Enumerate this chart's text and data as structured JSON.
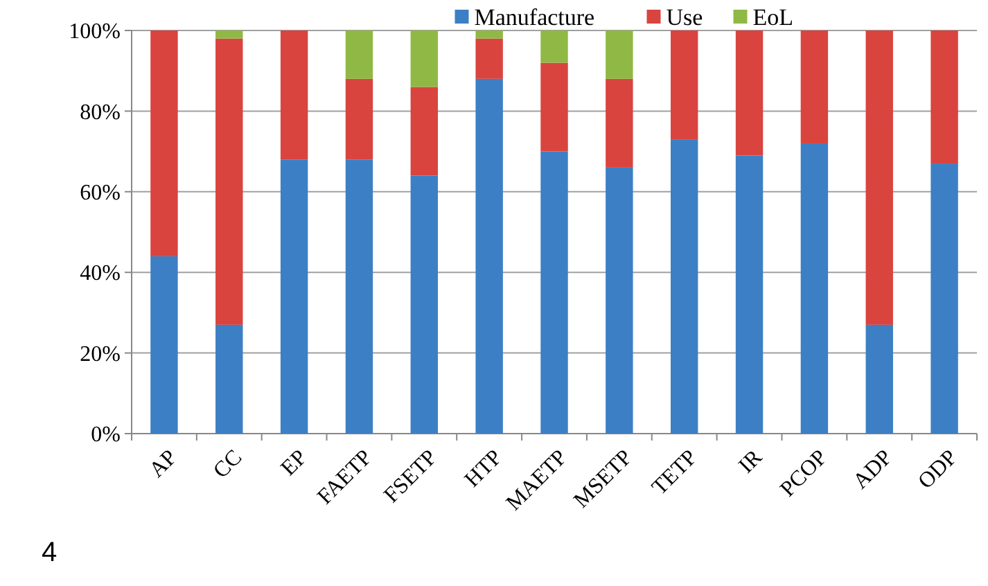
{
  "chart_data": {
    "type": "bar",
    "stacked": true,
    "categories": [
      "AP",
      "CC",
      "EP",
      "FAETP",
      "FSETP",
      "HTP",
      "MAETP",
      "MSETP",
      "TETP",
      "IR",
      "PCOP",
      "ADP",
      "ODP"
    ],
    "series": [
      {
        "name": "Manufacture",
        "color": "#3d7fc4",
        "values": [
          44,
          27,
          68,
          68,
          64,
          88,
          70,
          66,
          73,
          69,
          72,
          27,
          67
        ]
      },
      {
        "name": "Use",
        "color": "#d9443f",
        "values": [
          56,
          71,
          32,
          20,
          22,
          10,
          22,
          22,
          27,
          31,
          28,
          73,
          33
        ]
      },
      {
        "name": "EoL",
        "color": "#8fb944",
        "values": [
          0,
          2,
          0,
          12,
          14,
          2,
          8,
          12,
          0,
          0,
          0,
          0,
          0
        ]
      }
    ],
    "ylim": [
      0,
      100
    ],
    "yticks": [
      {
        "value": 0,
        "label": "0%"
      },
      {
        "value": 20,
        "label": "20%"
      },
      {
        "value": 40,
        "label": "40%"
      },
      {
        "value": 60,
        "label": "60%"
      },
      {
        "value": 80,
        "label": "80%"
      },
      {
        "value": 100,
        "label": "100%"
      }
    ],
    "grid": "y",
    "legend": "top",
    "annotations": [
      "4"
    ]
  }
}
